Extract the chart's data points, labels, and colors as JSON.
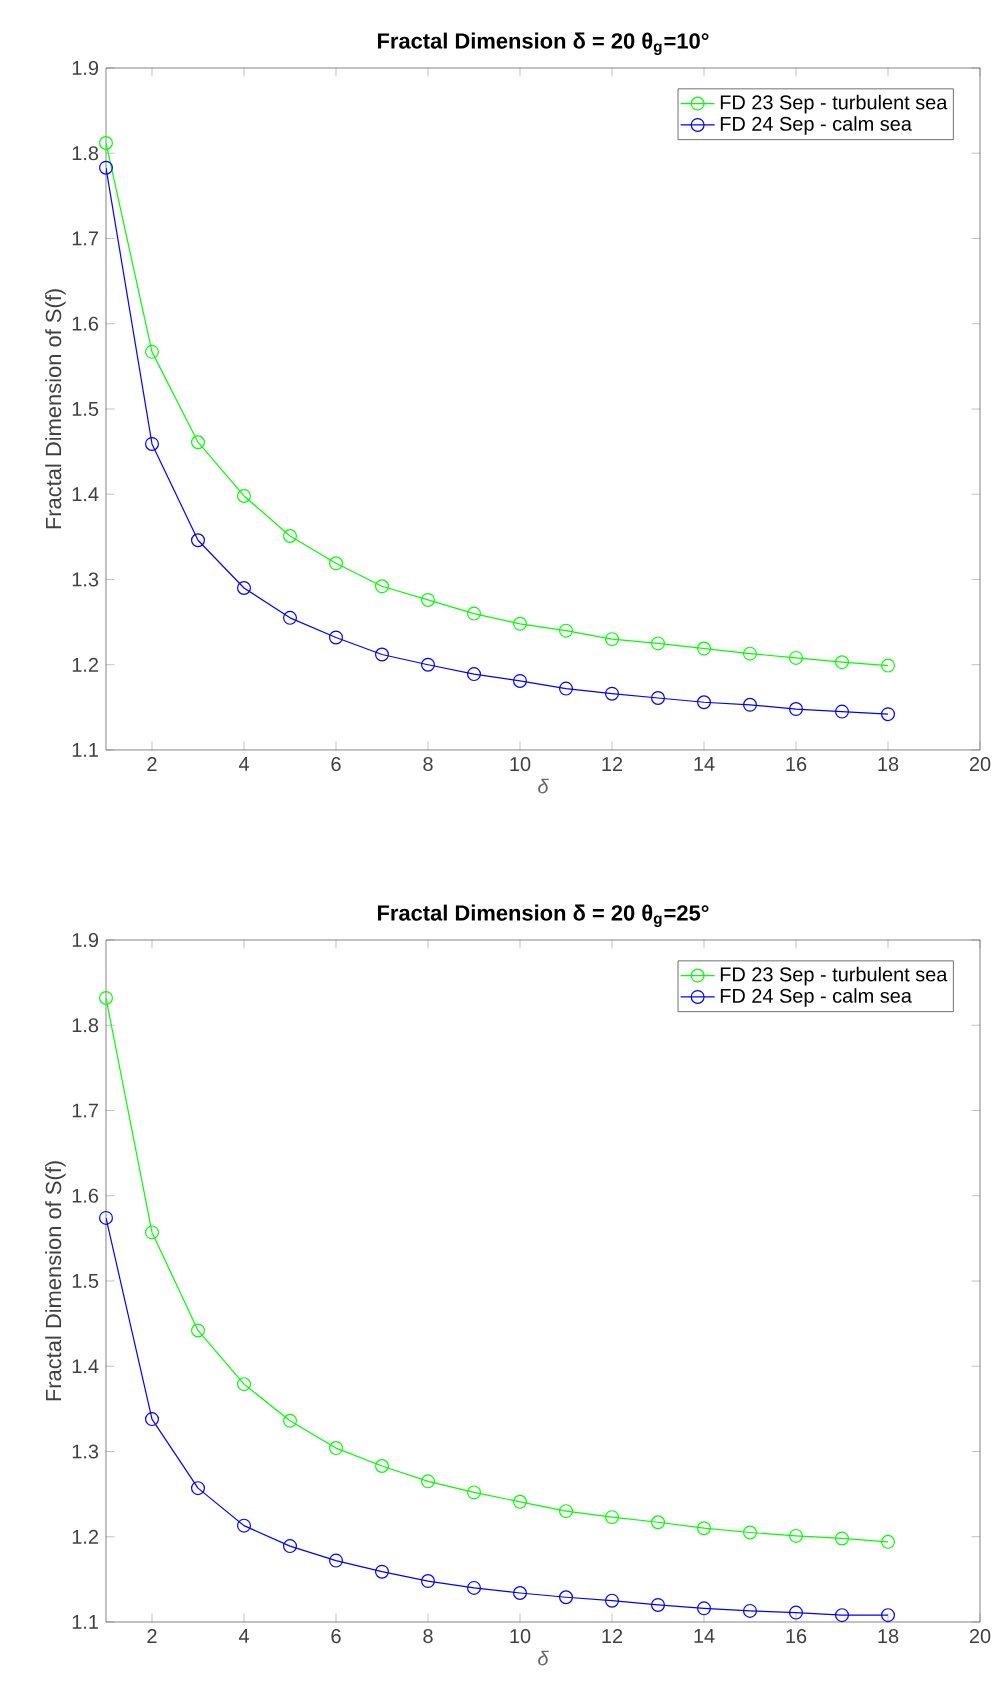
{
  "chart_data": [
    {
      "type": "line",
      "title": "Fractal Dimension δ = 20 θ$_{g}$=10°",
      "xlabel": "δ",
      "ylabel": "Fractal Dimension of S(f)",
      "x": [
        1,
        2,
        3,
        4,
        5,
        6,
        7,
        8,
        9,
        10,
        11,
        12,
        13,
        14,
        15,
        16,
        17,
        18
      ],
      "xlim": [
        1,
        20
      ],
      "xticks": [
        2,
        4,
        6,
        8,
        10,
        12,
        14,
        16,
        18,
        20
      ],
      "ylim": [
        1.1,
        1.9
      ],
      "yticks": [
        1.1,
        1.2,
        1.3,
        1.4,
        1.5,
        1.6,
        1.7,
        1.8,
        1.9
      ],
      "grid": false,
      "legend": "top right",
      "marker": "circle",
      "line_style": "solid",
      "series": [
        {
          "name": "FD 23 Sep - turbulent sea",
          "color": "#00ff00",
          "values": [
            1.812,
            1.567,
            1.461,
            1.398,
            1.351,
            1.319,
            1.292,
            1.276,
            1.26,
            1.248,
            1.24,
            1.23,
            1.225,
            1.219,
            1.213,
            1.208,
            1.203,
            1.199
          ]
        },
        {
          "name": "FD 24 Sep - calm sea",
          "color": "#0000ff",
          "values": [
            1.783,
            1.459,
            1.346,
            1.29,
            1.255,
            1.232,
            1.212,
            1.2,
            1.189,
            1.181,
            1.172,
            1.166,
            1.161,
            1.156,
            1.153,
            1.148,
            1.145,
            1.142
          ]
        }
      ]
    },
    {
      "type": "line",
      "title": "Fractal Dimension δ = 20 θ$_{g}$=25°",
      "xlabel": "δ",
      "ylabel": "Fractal Dimension of S(f)",
      "x": [
        1,
        2,
        3,
        4,
        5,
        6,
        7,
        8,
        9,
        10,
        11,
        12,
        13,
        14,
        15,
        16,
        17,
        18
      ],
      "xlim": [
        1,
        20
      ],
      "xticks": [
        2,
        4,
        6,
        8,
        10,
        12,
        14,
        16,
        18,
        20
      ],
      "ylim": [
        1.1,
        1.9
      ],
      "yticks": [
        1.1,
        1.2,
        1.3,
        1.4,
        1.5,
        1.6,
        1.7,
        1.8,
        1.9
      ],
      "grid": false,
      "legend": "top right",
      "marker": "circle",
      "line_style": "solid",
      "series": [
        {
          "name": "FD 23 Sep - turbulent sea",
          "color": "#00ff00",
          "values": [
            1.832,
            1.557,
            1.442,
            1.379,
            1.336,
            1.304,
            1.283,
            1.265,
            1.252,
            1.241,
            1.23,
            1.223,
            1.217,
            1.21,
            1.205,
            1.201,
            1.198,
            1.194
          ]
        },
        {
          "name": "FD 24 Sep - calm sea",
          "color": "#0000ff",
          "values": [
            1.574,
            1.338,
            1.257,
            1.213,
            1.189,
            1.172,
            1.159,
            1.148,
            1.14,
            1.134,
            1.129,
            1.125,
            1.12,
            1.116,
            1.113,
            1.111,
            1.108,
            1.108
          ]
        }
      ]
    }
  ]
}
